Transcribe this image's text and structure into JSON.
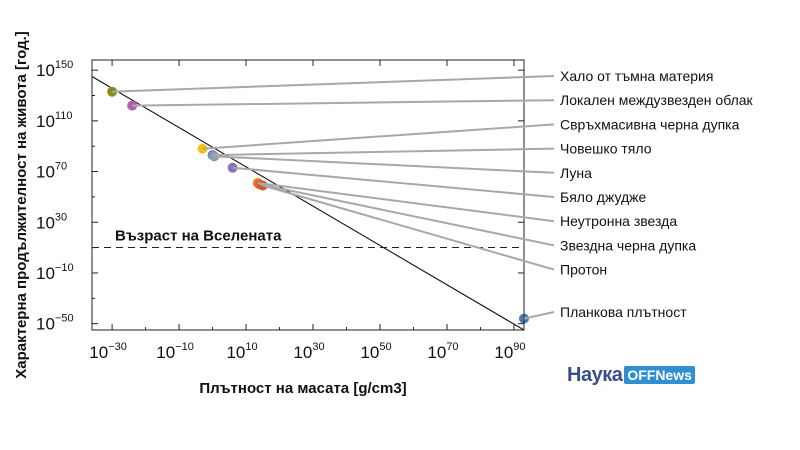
{
  "chart_data": {
    "type": "scatter",
    "xlabel": "Плътност на масата [g/cm3]",
    "ylabel": "Характерна продължителност на живота [год.]",
    "x_scale": "log",
    "y_scale": "log",
    "xlim_exp": [
      -36,
      93
    ],
    "ylim_exp": [
      -55,
      158
    ],
    "x_tick_exps": [
      -30,
      -10,
      10,
      30,
      50,
      70,
      90
    ],
    "y_tick_exps": [
      150,
      110,
      70,
      30,
      -10,
      -50
    ],
    "trend_line": {
      "x_exp": [
        -36,
        93
      ],
      "y_exp": [
        145,
        -55
      ]
    },
    "reference_line": {
      "label": "Възраст на Вселената",
      "y_exp": 10.1
    },
    "points": [
      {
        "label": "Хало от тъмна материя",
        "x_exp": -30,
        "y_exp": 133,
        "color": "#8c8c1e"
      },
      {
        "label": "Локален междузвезден облак",
        "x_exp": -24,
        "y_exp": 122,
        "color": "#b25fb0"
      },
      {
        "label": "Свръхмасивна черна дупка",
        "x_exp": -3,
        "y_exp": 88,
        "color": "#f5c216"
      },
      {
        "label": "Човешко тяло",
        "x_exp": 0,
        "y_exp": 83,
        "color": "#5b88c2"
      },
      {
        "label": "Луна",
        "x_exp": 0.5,
        "y_exp": 82,
        "color": "#8f9ab0"
      },
      {
        "label": "Бяло джудже",
        "x_exp": 6,
        "y_exp": 73,
        "color": "#8c73b8"
      },
      {
        "label": "Неутронна звезда",
        "x_exp": 13.5,
        "y_exp": 61,
        "color": "#e8892c"
      },
      {
        "label": "Звездна черна дупка",
        "x_exp": 14,
        "y_exp": 60,
        "color": "#e0692c"
      },
      {
        "label": "Протон",
        "x_exp": 15,
        "y_exp": 59,
        "color": "#d8542c"
      },
      {
        "label": "Планкова плътност",
        "x_exp": 93,
        "y_exp": -46,
        "color": "#4e78b8"
      }
    ]
  },
  "logo": {
    "main": "Наука",
    "box": "OFFNews"
  }
}
